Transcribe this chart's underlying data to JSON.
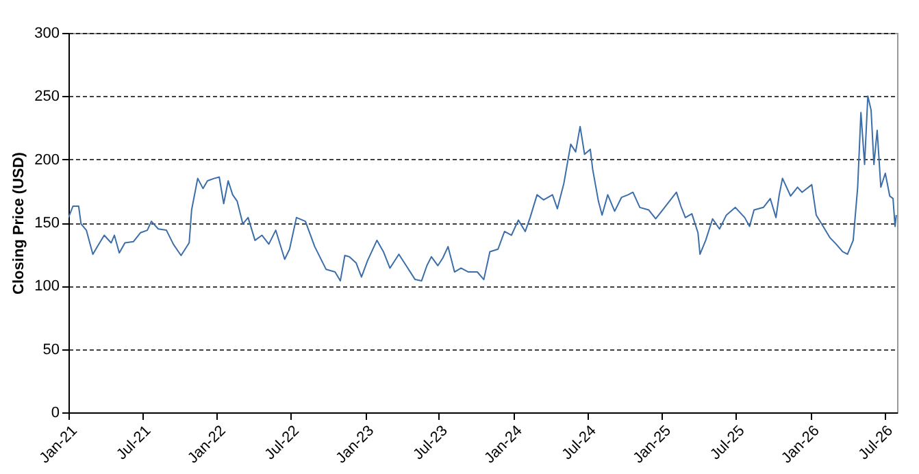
{
  "chart_data": {
    "type": "line",
    "ylabel": "Closing Price (USD)",
    "x": [
      "2021-01-01",
      "2021-01-12",
      "2021-01-26",
      "2021-02-01",
      "2021-02-14",
      "2021-03-02",
      "2021-03-13",
      "2021-03-30",
      "2021-04-16",
      "2021-04-24",
      "2021-05-06",
      "2021-05-20",
      "2021-06-10",
      "2021-06-27",
      "2021-07-14",
      "2021-07-24",
      "2021-08-10",
      "2021-08-30",
      "2021-09-16",
      "2021-10-05",
      "2021-10-25",
      "2021-10-31",
      "2021-11-15",
      "2021-11-28",
      "2021-12-09",
      "2021-12-26",
      "2022-01-07",
      "2022-01-18",
      "2022-01-29",
      "2022-02-09",
      "2022-02-20",
      "2022-03-06",
      "2022-03-19",
      "2022-04-05",
      "2022-04-22",
      "2022-05-09",
      "2022-05-26",
      "2022-06-17",
      "2022-06-29",
      "2022-07-16",
      "2022-08-07",
      "2022-08-30",
      "2022-09-27",
      "2022-10-19",
      "2022-11-01",
      "2022-11-12",
      "2022-11-23",
      "2022-12-10",
      "2022-12-23",
      "2023-01-07",
      "2023-01-30",
      "2023-02-15",
      "2023-03-03",
      "2023-03-25",
      "2023-04-12",
      "2023-05-04",
      "2023-05-20",
      "2023-06-02",
      "2023-06-13",
      "2023-06-29",
      "2023-07-11",
      "2023-07-24",
      "2023-08-09",
      "2023-08-25",
      "2023-09-12",
      "2023-10-04",
      "2023-10-20",
      "2023-11-04",
      "2023-11-24",
      "2023-12-10",
      "2023-12-27",
      "2024-01-13",
      "2024-01-30",
      "2024-02-11",
      "2024-02-28",
      "2024-03-15",
      "2024-04-06",
      "2024-04-18",
      "2024-05-04",
      "2024-05-21",
      "2024-06-02",
      "2024-06-13",
      "2024-06-24",
      "2024-07-08",
      "2024-07-14",
      "2024-07-28",
      "2024-08-06",
      "2024-08-20",
      "2024-09-06",
      "2024-09-23",
      "2024-10-09",
      "2024-10-21",
      "2024-11-07",
      "2024-11-29",
      "2024-12-16",
      "2025-01-02",
      "2025-01-19",
      "2025-02-05",
      "2025-02-16",
      "2025-02-27",
      "2025-03-15",
      "2025-03-30",
      "2025-04-04",
      "2025-04-18",
      "2025-05-05",
      "2025-05-22",
      "2025-06-08",
      "2025-06-30",
      "2025-07-23",
      "2025-08-04",
      "2025-08-15",
      "2025-09-07",
      "2025-09-24",
      "2025-10-08",
      "2025-10-16",
      "2025-10-24",
      "2025-11-13",
      "2025-11-30",
      "2025-12-11",
      "2026-01-04",
      "2026-01-15",
      "2026-02-01",
      "2026-02-18",
      "2026-03-05",
      "2026-03-21",
      "2026-04-02",
      "2026-04-16",
      "2026-04-27",
      "2026-05-05",
      "2026-05-14",
      "2026-05-22",
      "2026-05-30",
      "2026-06-06",
      "2026-06-14",
      "2026-06-23",
      "2026-07-04",
      "2026-07-15",
      "2026-07-23",
      "2026-07-28",
      "2026-07-31"
    ],
    "series": [
      {
        "color": "#3b6ea8",
        "values": [
          154,
          163,
          163,
          149,
          144,
          125,
          131,
          140,
          134,
          140,
          126,
          134,
          135,
          142,
          144,
          151,
          145,
          144,
          133,
          124,
          134,
          160,
          185,
          177,
          183,
          185,
          186,
          165,
          183,
          172,
          167,
          149,
          154,
          136,
          140,
          133,
          144,
          121,
          129,
          154,
          151,
          131,
          113,
          111,
          104,
          124,
          123,
          118,
          107,
          120,
          136,
          127,
          114,
          125,
          116,
          105,
          104,
          116,
          123,
          116,
          122,
          131,
          111,
          114,
          111,
          111,
          105,
          127,
          129,
          143,
          140,
          152,
          143,
          154,
          172,
          168,
          172,
          161,
          181,
          212,
          206,
          226,
          204,
          208,
          192,
          167,
          156,
          172,
          159,
          170,
          172,
          174,
          162,
          160,
          153,
          160,
          167,
          174,
          163,
          154,
          157,
          142,
          125,
          136,
          153,
          145,
          156,
          162,
          154,
          147,
          160,
          162,
          169,
          154,
          172,
          185,
          171,
          178,
          174,
          180,
          156,
          147,
          138,
          133,
          127,
          125,
          136,
          178,
          237,
          196,
          250,
          239,
          196,
          223,
          178,
          189,
          171,
          169,
          147,
          156
        ]
      }
    ],
    "xlim": [
      "2021-01-01",
      "2026-08-02"
    ],
    "xticks": [
      {
        "value": "2021-01-01",
        "label": "Jan-21"
      },
      {
        "value": "2021-07-01",
        "label": "Jul-21"
      },
      {
        "value": "2022-01-01",
        "label": "Jan-22"
      },
      {
        "value": "2022-07-01",
        "label": "Jul-22"
      },
      {
        "value": "2023-01-01",
        "label": "Jan-23"
      },
      {
        "value": "2023-07-01",
        "label": "Jul-23"
      },
      {
        "value": "2024-01-01",
        "label": "Jan-24"
      },
      {
        "value": "2024-07-01",
        "label": "Jul-24"
      },
      {
        "value": "2025-01-01",
        "label": "Jan-25"
      },
      {
        "value": "2025-07-01",
        "label": "Jul-25"
      },
      {
        "value": "2026-01-01",
        "label": "Jan-26"
      },
      {
        "value": "2026-07-01",
        "label": "Jul-26"
      }
    ],
    "ylim": [
      0,
      300
    ],
    "yticks": [
      0,
      50,
      100,
      150,
      200,
      250,
      300
    ],
    "grid": "y",
    "line_style": "solid"
  }
}
